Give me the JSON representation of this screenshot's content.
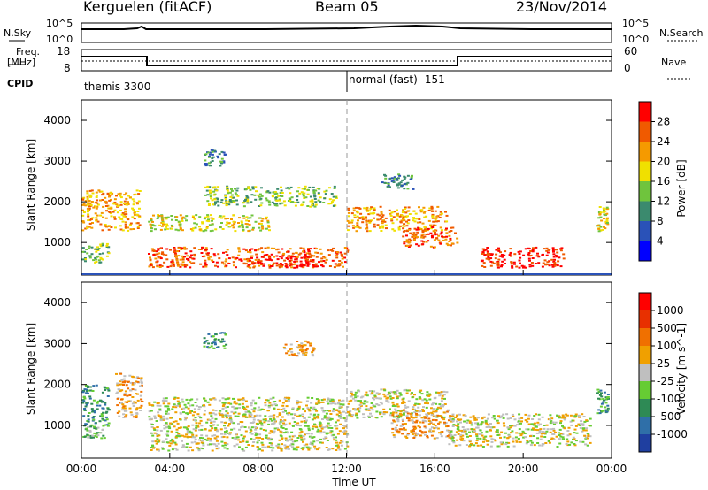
{
  "header": {
    "station": "Kerguelen (fitACF)",
    "beam": "Beam 05",
    "date": "23/Nov/2014"
  },
  "info": {
    "nsky_label": "N.Sky",
    "nsky_ticks": [
      "10^5",
      "10^0"
    ],
    "nsearch_label": "N.Search",
    "nsearch_ticks": [
      "10^5",
      "10^0"
    ],
    "freq_label_1": "Freq.",
    "freq_label_2": "[MHz]",
    "freq_ticks": [
      "18",
      "8"
    ],
    "nave_label": "Nave",
    "nave_ticks": [
      "60",
      "0"
    ],
    "cpid_label": "CPID",
    "cpid_segments": [
      "themis 3300",
      "normal (fast) -151"
    ]
  },
  "colors": {
    "power_scale": [
      "#0000ff",
      "#2a52b8",
      "#3b8a6e",
      "#6fc43d",
      "#f0e000",
      "#f59a00",
      "#f05a00",
      "#ff0000"
    ],
    "velocity_scale": [
      "#1f3fa0",
      "#2f6fa8",
      "#2e8a55",
      "#66cc33",
      "#bfbfbf",
      "#f0a000",
      "#f07000",
      "#e83000",
      "#ff0000"
    ]
  },
  "chart_data": [
    {
      "type": "heatmap",
      "name": "power",
      "ylabel": "Slant Range [km]",
      "ylim": [
        200,
        4500
      ],
      "xlim_hours": [
        0,
        24
      ],
      "yticks": [
        "4000",
        "3000",
        "2000",
        "1000"
      ],
      "colorbar_label": "Power [dB]",
      "colorbar_ticks": [
        "28",
        "24",
        "20",
        "16",
        "12",
        "8",
        "4"
      ],
      "echo_bands": [
        {
          "t0": 0.0,
          "t1": 2.6,
          "r0": 1300,
          "r1": 2300,
          "level": 5
        },
        {
          "t0": 0.0,
          "t1": 1.2,
          "r0": 500,
          "r1": 1000,
          "level": 3
        },
        {
          "t0": 3.0,
          "t1": 8.5,
          "r0": 1300,
          "r1": 1700,
          "level": 4
        },
        {
          "t0": 3.0,
          "t1": 12.0,
          "r0": 400,
          "r1": 900,
          "level": 6
        },
        {
          "t0": 8.0,
          "t1": 11.0,
          "r0": 400,
          "r1": 700,
          "level": 7
        },
        {
          "t0": 5.5,
          "t1": 11.5,
          "r0": 1900,
          "r1": 2400,
          "level": 3
        },
        {
          "t0": 12.0,
          "t1": 16.5,
          "r0": 1300,
          "r1": 1900,
          "level": 5
        },
        {
          "t0": 14.5,
          "t1": 17.0,
          "r0": 900,
          "r1": 1400,
          "level": 6
        },
        {
          "t0": 18.0,
          "t1": 21.8,
          "r0": 400,
          "r1": 900,
          "level": 7
        },
        {
          "t0": 23.3,
          "t1": 23.8,
          "r0": 1300,
          "r1": 1900,
          "level": 4
        },
        {
          "t0": 5.5,
          "t1": 6.5,
          "r0": 2900,
          "r1": 3300,
          "level": 2
        },
        {
          "t0": 13.5,
          "t1": 15.0,
          "r0": 2300,
          "r1": 2700,
          "level": 2
        }
      ]
    },
    {
      "type": "heatmap",
      "name": "velocity",
      "ylabel": "Slant Range [km]",
      "xlabel": "Time UT",
      "ylim": [
        200,
        4500
      ],
      "xlim_hours": [
        0,
        24
      ],
      "xticks": [
        "00:00",
        "04:00",
        "08:00",
        "12:00",
        "16:00",
        "20:00",
        "00:00"
      ],
      "yticks": [
        "4000",
        "3000",
        "2000",
        "1000"
      ],
      "colorbar_label": "Velocity [m s^-1]",
      "colorbar_ticks": [
        "1000",
        "500",
        "100",
        "25",
        "-25",
        "-100",
        "-500",
        "-1000"
      ],
      "echo_bands": [
        {
          "t0": 0.0,
          "t1": 1.2,
          "r0": 1000,
          "r1": 2000,
          "level": 2
        },
        {
          "t0": 0.0,
          "t1": 1.0,
          "r0": 700,
          "r1": 1000,
          "level": 3
        },
        {
          "t0": 1.5,
          "t1": 2.7,
          "r0": 1200,
          "r1": 2300,
          "level": 5
        },
        {
          "t0": 3.0,
          "t1": 12.0,
          "r0": 400,
          "r1": 1700,
          "level": 4
        },
        {
          "t0": 12.0,
          "t1": 16.5,
          "r0": 1200,
          "r1": 1900,
          "level": 4
        },
        {
          "t0": 14.0,
          "t1": 16.8,
          "r0": 700,
          "r1": 1400,
          "level": 5
        },
        {
          "t0": 16.5,
          "t1": 23.0,
          "r0": 500,
          "r1": 1300,
          "level": 4
        },
        {
          "t0": 23.3,
          "t1": 23.8,
          "r0": 1300,
          "r1": 1900,
          "level": 2
        },
        {
          "t0": 5.5,
          "t1": 6.5,
          "r0": 2900,
          "r1": 3300,
          "level": 2
        },
        {
          "t0": 9.0,
          "t1": 10.5,
          "r0": 2700,
          "r1": 3100,
          "level": 5
        }
      ]
    }
  ]
}
